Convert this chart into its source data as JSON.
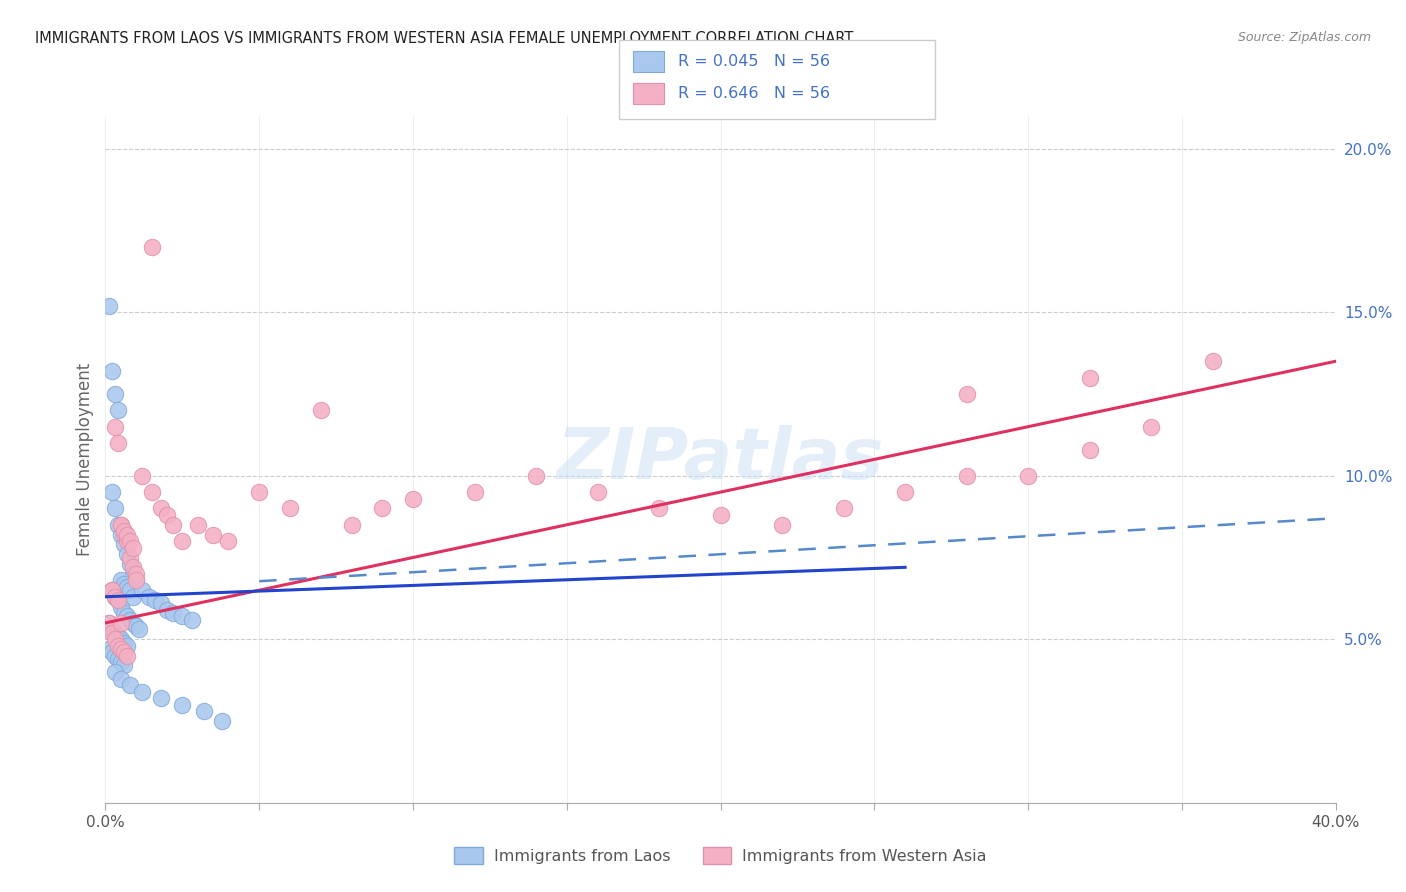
{
  "title": "IMMIGRANTS FROM LAOS VS IMMIGRANTS FROM WESTERN ASIA FEMALE UNEMPLOYMENT CORRELATION CHART",
  "source": "Source: ZipAtlas.com",
  "ylabel": "Female Unemployment",
  "legend_label_blue": "Immigrants from Laos",
  "legend_label_pink": "Immigrants from Western Asia",
  "watermark": "ZIPatlas",
  "blue_scatter_color": "#aac8ee",
  "blue_scatter_edge": "#80a8d8",
  "pink_scatter_color": "#f4b0c4",
  "pink_scatter_edge": "#e090a8",
  "blue_line_color": "#2244cc",
  "blue_dash_color": "#5588cc",
  "pink_line_color": "#e03060",
  "right_axis_color": "#4472C4",
  "legend_text_color": "#4472C4",
  "grid_color": "#cccccc",
  "title_color": "#222222",
  "source_color": "#888888",
  "xmin": 0.0,
  "xmax": 0.4,
  "ymin": 0.0,
  "ymax": 0.21,
  "yticks": [
    0.0,
    0.05,
    0.1,
    0.15,
    0.2
  ],
  "yticklabels": [
    "",
    "5.0%",
    "10.0%",
    "15.0%",
    "20.0%"
  ],
  "xtick_positions": [
    0.0,
    0.05,
    0.1,
    0.15,
    0.2,
    0.25,
    0.3,
    0.35,
    0.4
  ],
  "xtick_labels": [
    "0.0%",
    "",
    "",
    "",
    "",
    "",
    "",
    "",
    "40.0%"
  ],
  "laos_x": [
    0.002,
    0.003,
    0.004,
    0.005,
    0.006,
    0.007,
    0.008,
    0.009,
    0.01,
    0.002,
    0.003,
    0.004,
    0.005,
    0.006,
    0.007,
    0.008,
    0.009,
    0.01,
    0.011,
    0.001,
    0.002,
    0.003,
    0.004,
    0.005,
    0.006,
    0.007,
    0.008,
    0.009,
    0.001,
    0.002,
    0.003,
    0.004,
    0.005,
    0.006,
    0.007,
    0.001,
    0.002,
    0.003,
    0.004,
    0.005,
    0.006,
    0.012,
    0.014,
    0.016,
    0.018,
    0.02,
    0.022,
    0.025,
    0.028,
    0.003,
    0.005,
    0.008,
    0.012,
    0.018,
    0.025,
    0.032,
    0.038
  ],
  "laos_y": [
    0.095,
    0.09,
    0.085,
    0.082,
    0.079,
    0.076,
    0.073,
    0.07,
    0.068,
    0.065,
    0.063,
    0.062,
    0.06,
    0.058,
    0.057,
    0.056,
    0.055,
    0.054,
    0.053,
    0.152,
    0.132,
    0.125,
    0.12,
    0.068,
    0.067,
    0.066,
    0.065,
    0.063,
    0.055,
    0.053,
    0.052,
    0.051,
    0.05,
    0.049,
    0.048,
    0.047,
    0.046,
    0.045,
    0.044,
    0.043,
    0.042,
    0.065,
    0.063,
    0.062,
    0.061,
    0.059,
    0.058,
    0.057,
    0.056,
    0.04,
    0.038,
    0.036,
    0.034,
    0.032,
    0.03,
    0.028,
    0.025
  ],
  "western_x": [
    0.002,
    0.003,
    0.004,
    0.005,
    0.006,
    0.007,
    0.008,
    0.009,
    0.01,
    0.002,
    0.003,
    0.004,
    0.005,
    0.006,
    0.007,
    0.008,
    0.009,
    0.01,
    0.001,
    0.002,
    0.003,
    0.004,
    0.005,
    0.006,
    0.007,
    0.012,
    0.015,
    0.018,
    0.02,
    0.022,
    0.025,
    0.03,
    0.035,
    0.04,
    0.05,
    0.06,
    0.07,
    0.08,
    0.09,
    0.1,
    0.12,
    0.14,
    0.16,
    0.18,
    0.2,
    0.22,
    0.24,
    0.26,
    0.28,
    0.3,
    0.32,
    0.34,
    0.28,
    0.32,
    0.36,
    0.005,
    0.015
  ],
  "western_y": [
    0.065,
    0.115,
    0.11,
    0.085,
    0.082,
    0.08,
    0.075,
    0.072,
    0.07,
    0.065,
    0.063,
    0.062,
    0.085,
    0.083,
    0.082,
    0.08,
    0.078,
    0.068,
    0.055,
    0.052,
    0.05,
    0.048,
    0.047,
    0.046,
    0.045,
    0.1,
    0.095,
    0.09,
    0.088,
    0.085,
    0.08,
    0.085,
    0.082,
    0.08,
    0.095,
    0.09,
    0.12,
    0.085,
    0.09,
    0.093,
    0.095,
    0.1,
    0.095,
    0.09,
    0.088,
    0.085,
    0.09,
    0.095,
    0.1,
    0.1,
    0.108,
    0.115,
    0.125,
    0.13,
    0.135,
    0.055,
    0.17
  ]
}
